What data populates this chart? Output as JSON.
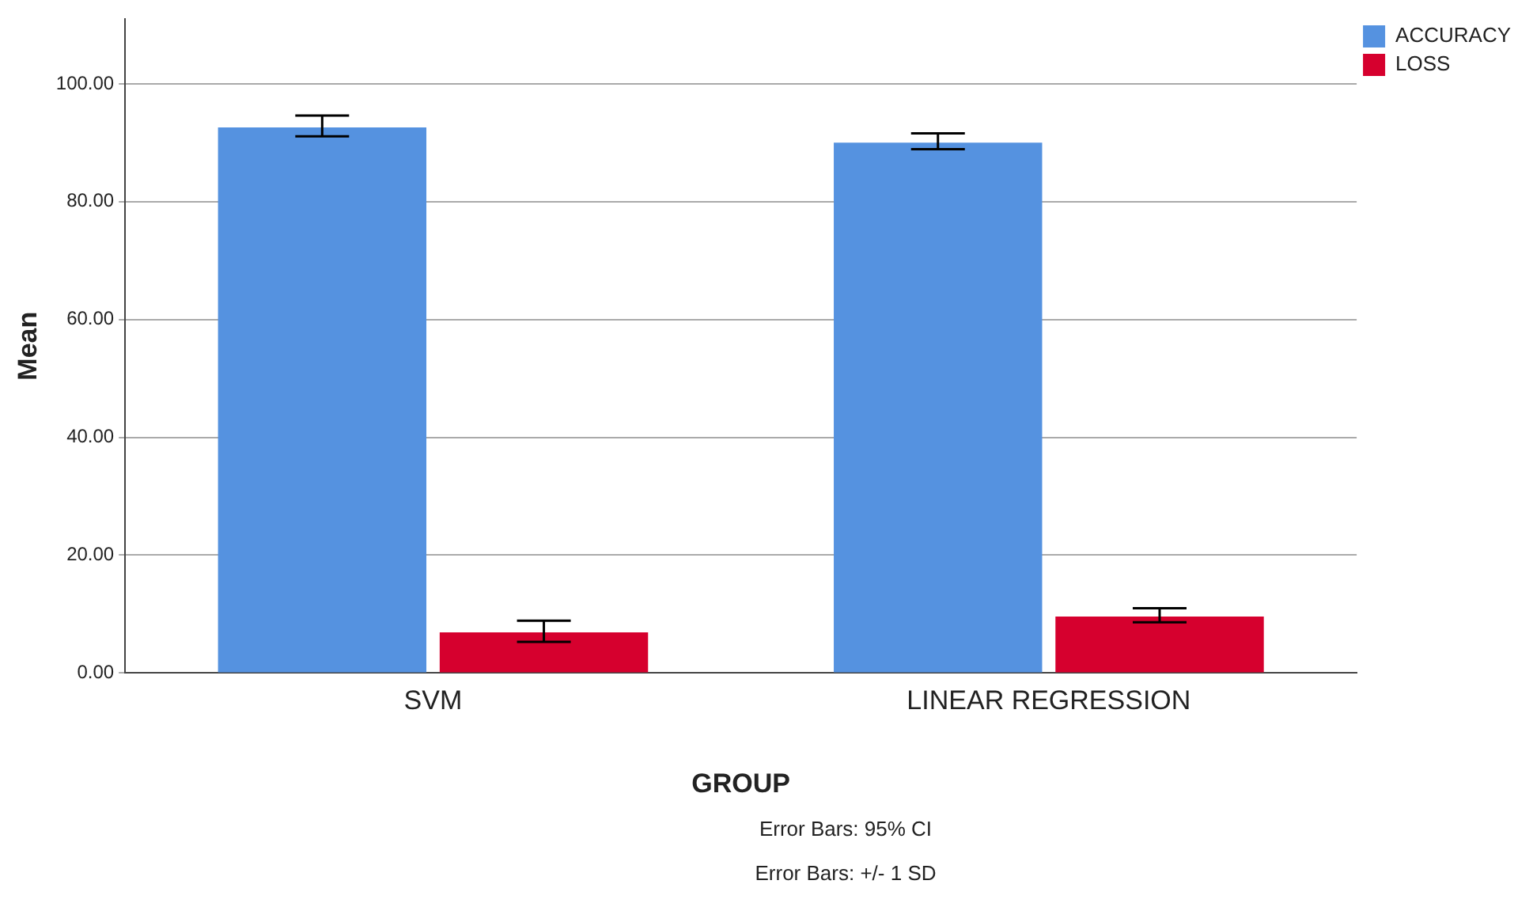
{
  "chart_data": {
    "type": "bar",
    "xlabel": "GROUP",
    "ylabel": "Mean",
    "categories": [
      "SVM",
      "LINEAR REGRESSION"
    ],
    "series": [
      {
        "name": "ACCURACY",
        "color": "#5592e0",
        "values": [
          92.6,
          90.0
        ],
        "errors": [
          [
            91.1,
            94.6
          ],
          [
            88.9,
            91.6
          ]
        ]
      },
      {
        "name": "LOSS",
        "color": "#d6002e",
        "values": [
          6.9,
          9.6
        ],
        "errors": [
          [
            5.3,
            8.9
          ],
          [
            8.6,
            11.0
          ]
        ]
      }
    ],
    "ylim": [
      0,
      111
    ],
    "yticks": [
      {
        "value": 0,
        "label": "0.00"
      },
      {
        "value": 20,
        "label": "20.00"
      },
      {
        "value": 40,
        "label": "40.00"
      },
      {
        "value": 60,
        "label": "60.00"
      },
      {
        "value": 80,
        "label": "80.00"
      },
      {
        "value": 100,
        "label": "100.00"
      }
    ],
    "grid": "y",
    "legend": "top right",
    "annotations": [
      "Error Bars: 95% CI",
      "Error Bars: +/- 1 SD"
    ]
  }
}
